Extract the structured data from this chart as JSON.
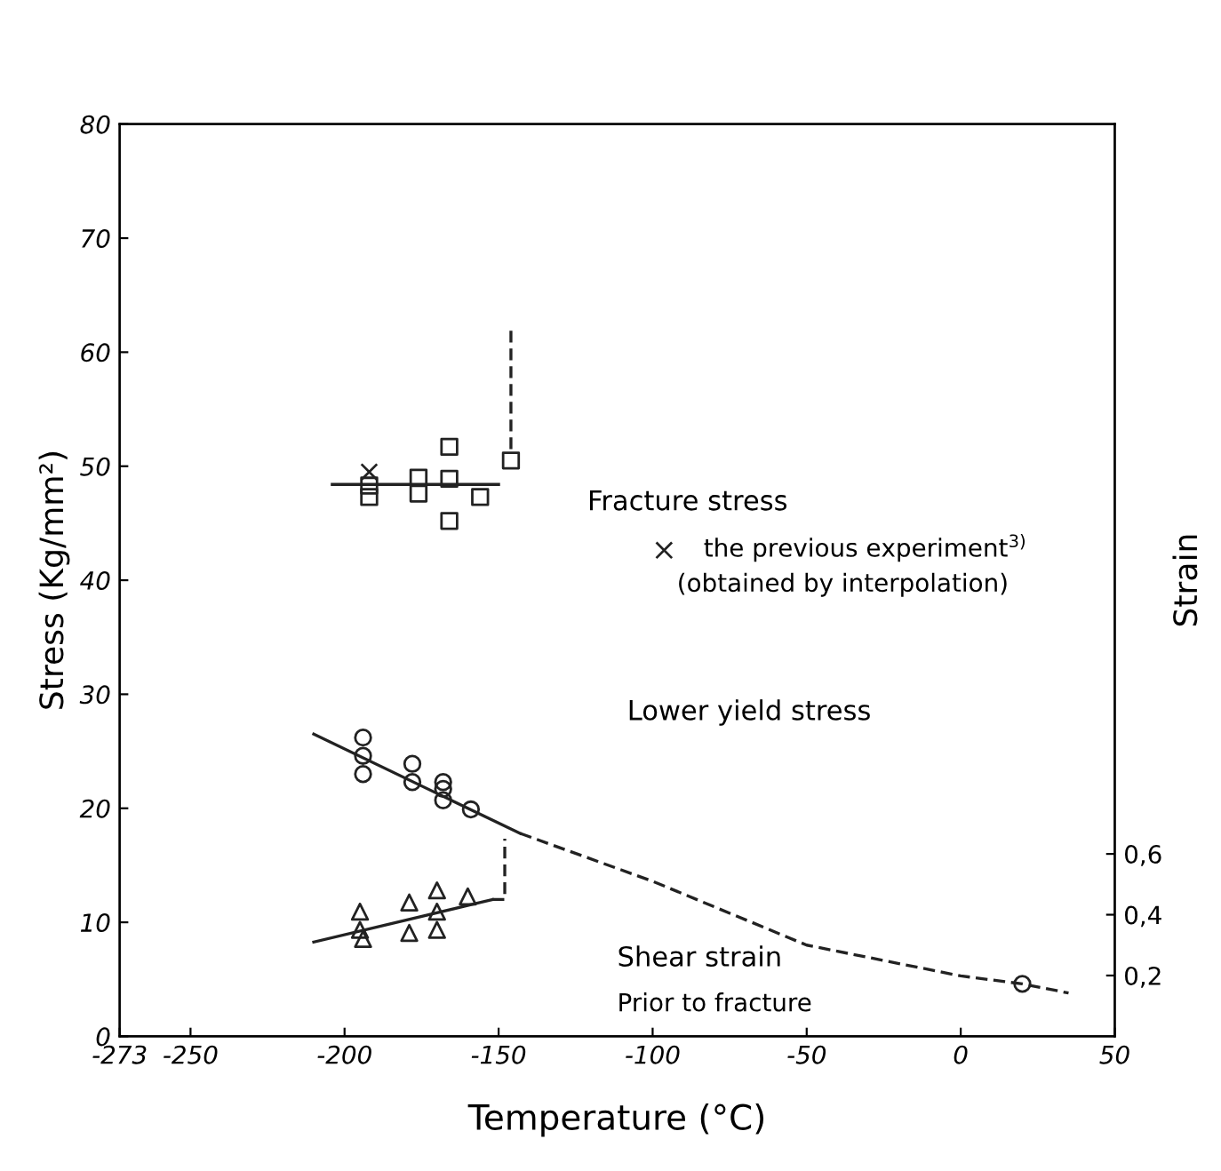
{
  "chart_data": {
    "type": "scatter",
    "xlabel": "Temperature (°C)",
    "ylabel": "Stress (Kg/mm²)",
    "y2label": "Strain",
    "xlim": [
      -273,
      50
    ],
    "xticks": [
      -273,
      -250,
      -200,
      -150,
      -100,
      -50,
      0,
      50
    ],
    "ylim": [
      0,
      80
    ],
    "yticks": [
      0,
      10,
      20,
      30,
      40,
      50,
      60,
      70,
      80
    ],
    "y2lim": [
      0,
      3.0
    ],
    "y2ticks": [
      {
        "value": 0.2,
        "label": "0,2"
      },
      {
        "value": 0.4,
        "label": "0,4"
      },
      {
        "value": 0.6,
        "label": "0,6"
      }
    ],
    "grid": false,
    "legend": "right",
    "marker": "circle",
    "annotations": [
      "Fracture stress",
      "(obtained by interpolation)",
      "Lower yield stress",
      "Shear strain",
      "Prior to fracture"
    ],
    "series": [
      {
        "marker": "square",
        "color": "#222222",
        "x": [
          -192,
          -192,
          -176,
          -176,
          -166,
          -166,
          -166,
          -156,
          -146
        ],
        "values": [
          48.3,
          47.3,
          49.0,
          47.6,
          51.7,
          48.9,
          45.2,
          47.3,
          50.5
        ]
      },
      {
        "marker": "cross",
        "color": "#222222",
        "name": "the previous experiment$^{3)}$",
        "x": [
          -192
        ],
        "values": [
          49.5
        ]
      },
      {
        "type": "line",
        "marker": "none",
        "line_style": "solid",
        "color": "#222222",
        "x": [
          -204,
          -150
        ],
        "values": [
          48.4,
          48.4
        ]
      },
      {
        "type": "line",
        "marker": "none",
        "line_style": "dashed",
        "color": "#222222",
        "x": [
          -146,
          -146
        ],
        "values": [
          51.5,
          62
        ]
      },
      {
        "color": "#222222",
        "x": [
          -194,
          -194,
          -194,
          -178,
          -178,
          -168,
          -168,
          -168,
          -159,
          20
        ],
        "values": [
          26.2,
          24.6,
          23.0,
          23.9,
          22.3,
          22.3,
          21.7,
          20.7,
          19.9,
          4.6
        ]
      },
      {
        "type": "line",
        "marker": "none",
        "line_style": "solid",
        "color": "#222222",
        "x": [
          -210,
          -143
        ],
        "values": [
          26.5,
          17.8
        ]
      },
      {
        "type": "line",
        "marker": "none",
        "line_style": "dashed",
        "color": "#222222",
        "x": [
          -143,
          -100,
          -50,
          0,
          20,
          35
        ],
        "values": [
          17.8,
          13.6,
          8.0,
          5.3,
          4.6,
          3.8
        ]
      },
      {
        "marker": "triangle",
        "axis": "y2",
        "color": "#222222",
        "x": [
          -195,
          -195,
          -194,
          -179,
          -179,
          -170,
          -170,
          -170,
          -160
        ],
        "values": [
          0.41,
          0.35,
          0.32,
          0.44,
          0.34,
          0.48,
          0.41,
          0.35,
          0.46
        ]
      },
      {
        "type": "line",
        "marker": "none",
        "line_style": "solid",
        "axis": "y2",
        "color": "#222222",
        "x": [
          -210,
          -152
        ],
        "values": [
          0.31,
          0.45
        ]
      },
      {
        "type": "line",
        "marker": "none",
        "line_style": "dashed",
        "axis": "y2",
        "color": "#222222",
        "x": [
          -152,
          -148,
          -148
        ],
        "values": [
          0.45,
          0.45,
          0.65
        ]
      }
    ]
  }
}
